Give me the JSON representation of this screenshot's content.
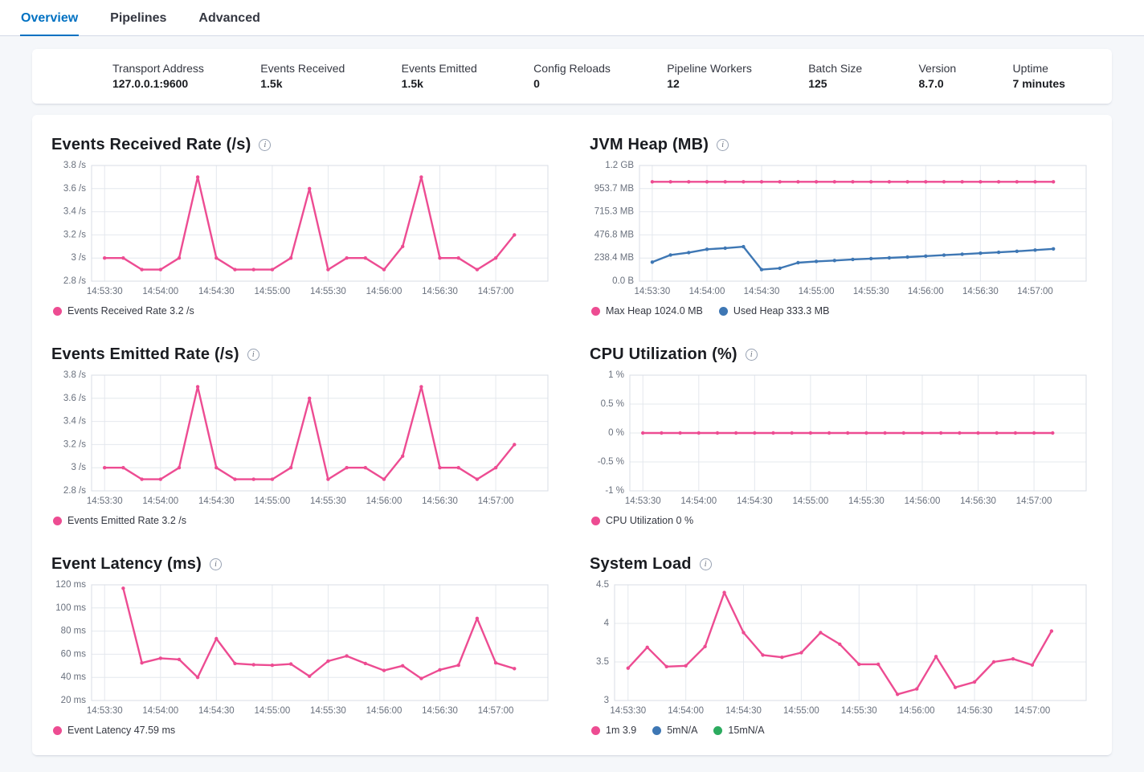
{
  "tabs": [
    {
      "label": "Overview",
      "active": true
    },
    {
      "label": "Pipelines",
      "active": false
    },
    {
      "label": "Advanced",
      "active": false
    }
  ],
  "summary": {
    "items": [
      {
        "label": "Transport Address",
        "value": "127.0.0.1:9600"
      },
      {
        "label": "Events Received",
        "value": "1.5k"
      },
      {
        "label": "Events Emitted",
        "value": "1.5k"
      },
      {
        "label": "Config Reloads",
        "value": "0"
      },
      {
        "label": "Pipeline Workers",
        "value": "12"
      },
      {
        "label": "Batch Size",
        "value": "125"
      },
      {
        "label": "Version",
        "value": "8.7.0"
      },
      {
        "label": "Uptime",
        "value": "7 minutes"
      }
    ]
  },
  "palette": {
    "pink": "#ED4C92",
    "blue": "#3E77B4",
    "green": "#2CAB5F",
    "grid": "#E4E8EE",
    "plot_border": "#D8DDE6",
    "axis_text": "#69707D",
    "accent": "#0071C2"
  },
  "icons": {
    "info": "i"
  },
  "chart_data": [
    {
      "type": "line",
      "title": "Events Received Rate (/s)",
      "x_domain": [
        -7,
        238
      ],
      "x_ticks": [
        {
          "t": 0,
          "label": "14:53:30"
        },
        {
          "t": 30,
          "label": "14:54:00"
        },
        {
          "t": 60,
          "label": "14:54:30"
        },
        {
          "t": 90,
          "label": "14:55:00"
        },
        {
          "t": 120,
          "label": "14:55:30"
        },
        {
          "t": 150,
          "label": "14:56:00"
        },
        {
          "t": 180,
          "label": "14:56:30"
        },
        {
          "t": 210,
          "label": "14:57:00"
        }
      ],
      "y_domain": [
        2.8,
        3.8
      ],
      "y_ticks": [
        {
          "v": 3.8,
          "label": "3.8 /s"
        },
        {
          "v": 3.6,
          "label": "3.6 /s"
        },
        {
          "v": 3.4,
          "label": "3.4 /s"
        },
        {
          "v": 3.2,
          "label": "3.2 /s"
        },
        {
          "v": 3,
          "label": "3 /s"
        },
        {
          "v": 2.8,
          "label": "2.8 /s"
        }
      ],
      "series": [
        {
          "name": "Events Received Rate",
          "color": "pink",
          "x_start_s": 0,
          "x_step_s": 10,
          "values": [
            3,
            3,
            2.9,
            2.9,
            3,
            3.7,
            3,
            2.9,
            2.9,
            2.9,
            3,
            3.6,
            2.9,
            3,
            3,
            2.9,
            3.1,
            3.7,
            3,
            3,
            2.9,
            3,
            3.2
          ]
        }
      ],
      "legend": [
        {
          "label": "Events Received Rate 3.2 /s",
          "color": "pink"
        }
      ]
    },
    {
      "type": "line",
      "title": "JVM Heap (MB)",
      "x_domain": [
        -7,
        238
      ],
      "x_ticks": [
        {
          "t": 0,
          "label": "14:53:30"
        },
        {
          "t": 30,
          "label": "14:54:00"
        },
        {
          "t": 60,
          "label": "14:54:30"
        },
        {
          "t": 90,
          "label": "14:55:00"
        },
        {
          "t": 120,
          "label": "14:55:30"
        },
        {
          "t": 150,
          "label": "14:56:00"
        },
        {
          "t": 180,
          "label": "14:56:30"
        },
        {
          "t": 210,
          "label": "14:57:00"
        }
      ],
      "y_domain": [
        0,
        1192.1
      ],
      "y_ticks": [
        {
          "v": 1192.1,
          "label": "1.2 GB"
        },
        {
          "v": 953.7,
          "label": "953.7 MB"
        },
        {
          "v": 715.3,
          "label": "715.3 MB"
        },
        {
          "v": 476.8,
          "label": "476.8 MB"
        },
        {
          "v": 238.4,
          "label": "238.4 MB"
        },
        {
          "v": 0,
          "label": "0.0 B"
        }
      ],
      "series": [
        {
          "name": "Max Heap",
          "color": "pink",
          "x_start_s": 0,
          "x_step_s": 10,
          "values": [
            1024,
            1024,
            1024,
            1024,
            1024,
            1024,
            1024,
            1024,
            1024,
            1024,
            1024,
            1024,
            1024,
            1024,
            1024,
            1024,
            1024,
            1024,
            1024,
            1024,
            1024,
            1024,
            1024
          ]
        },
        {
          "name": "Used Heap",
          "color": "blue",
          "x_start_s": 0,
          "x_step_s": 10,
          "values": [
            196,
            270,
            295,
            329,
            340,
            355,
            119,
            133,
            190,
            204,
            213,
            224,
            233,
            240,
            248,
            258,
            268,
            278,
            288,
            297,
            308,
            320,
            333
          ]
        }
      ],
      "legend": [
        {
          "label": "Max Heap 1024.0 MB",
          "color": "pink"
        },
        {
          "label": "Used Heap 333.3 MB",
          "color": "blue"
        }
      ]
    },
    {
      "type": "line",
      "title": "Events Emitted Rate (/s)",
      "x_domain": [
        -7,
        238
      ],
      "x_ticks": [
        {
          "t": 0,
          "label": "14:53:30"
        },
        {
          "t": 30,
          "label": "14:54:00"
        },
        {
          "t": 60,
          "label": "14:54:30"
        },
        {
          "t": 90,
          "label": "14:55:00"
        },
        {
          "t": 120,
          "label": "14:55:30"
        },
        {
          "t": 150,
          "label": "14:56:00"
        },
        {
          "t": 180,
          "label": "14:56:30"
        },
        {
          "t": 210,
          "label": "14:57:00"
        }
      ],
      "y_domain": [
        2.8,
        3.8
      ],
      "y_ticks": [
        {
          "v": 3.8,
          "label": "3.8 /s"
        },
        {
          "v": 3.6,
          "label": "3.6 /s"
        },
        {
          "v": 3.4,
          "label": "3.4 /s"
        },
        {
          "v": 3.2,
          "label": "3.2 /s"
        },
        {
          "v": 3,
          "label": "3 /s"
        },
        {
          "v": 2.8,
          "label": "2.8 /s"
        }
      ],
      "series": [
        {
          "name": "Events Emitted Rate",
          "color": "pink",
          "x_start_s": 0,
          "x_step_s": 10,
          "values": [
            3,
            3,
            2.9,
            2.9,
            3,
            3.7,
            3,
            2.9,
            2.9,
            2.9,
            3,
            3.6,
            2.9,
            3,
            3,
            2.9,
            3.1,
            3.7,
            3,
            3,
            2.9,
            3,
            3.2
          ]
        }
      ],
      "legend": [
        {
          "label": "Events Emitted Rate 3.2 /s",
          "color": "pink"
        }
      ]
    },
    {
      "type": "line",
      "title": "CPU Utilization (%)",
      "x_domain": [
        -7,
        238
      ],
      "x_ticks": [
        {
          "t": 0,
          "label": "14:53:30"
        },
        {
          "t": 30,
          "label": "14:54:00"
        },
        {
          "t": 60,
          "label": "14:54:30"
        },
        {
          "t": 90,
          "label": "14:55:00"
        },
        {
          "t": 120,
          "label": "14:55:30"
        },
        {
          "t": 150,
          "label": "14:56:00"
        },
        {
          "t": 180,
          "label": "14:56:30"
        },
        {
          "t": 210,
          "label": "14:57:00"
        }
      ],
      "y_domain": [
        -1,
        1
      ],
      "y_ticks": [
        {
          "v": 1,
          "label": "1 %"
        },
        {
          "v": 0.5,
          "label": "0.5 %"
        },
        {
          "v": 0,
          "label": "0 %"
        },
        {
          "v": -0.5,
          "label": "-0.5 %"
        },
        {
          "v": -1,
          "label": "-1 %"
        }
      ],
      "series": [
        {
          "name": "CPU Utilization",
          "color": "pink",
          "x_start_s": 0,
          "x_step_s": 10,
          "values": [
            0,
            0,
            0,
            0,
            0,
            0,
            0,
            0,
            0,
            0,
            0,
            0,
            0,
            0,
            0,
            0,
            0,
            0,
            0,
            0,
            0,
            0,
            0
          ]
        }
      ],
      "legend": [
        {
          "label": "CPU Utilization 0 %",
          "color": "pink"
        }
      ]
    },
    {
      "type": "line",
      "title": "Event Latency (ms)",
      "x_domain": [
        -7,
        238
      ],
      "x_ticks": [
        {
          "t": 0,
          "label": "14:53:30"
        },
        {
          "t": 30,
          "label": "14:54:00"
        },
        {
          "t": 60,
          "label": "14:54:30"
        },
        {
          "t": 90,
          "label": "14:55:00"
        },
        {
          "t": 120,
          "label": "14:55:30"
        },
        {
          "t": 150,
          "label": "14:56:00"
        },
        {
          "t": 180,
          "label": "14:56:30"
        },
        {
          "t": 210,
          "label": "14:57:00"
        }
      ],
      "y_domain": [
        20,
        120
      ],
      "y_ticks": [
        {
          "v": 120,
          "label": "120 ms"
        },
        {
          "v": 100,
          "label": "100 ms"
        },
        {
          "v": 80,
          "label": "80 ms"
        },
        {
          "v": 60,
          "label": "60 ms"
        },
        {
          "v": 40,
          "label": "40 ms"
        },
        {
          "v": 20,
          "label": "20 ms"
        }
      ],
      "series": [
        {
          "name": "Event Latency",
          "color": "pink",
          "x_start_s": 10,
          "x_step_s": 10,
          "values": [
            117,
            52.5,
            56.5,
            55.5,
            40,
            73.5,
            52,
            51,
            50.5,
            51.5,
            41,
            54,
            58.5,
            52,
            46,
            50,
            39,
            46.5,
            50.5,
            91,
            52.5,
            47.59
          ]
        }
      ],
      "legend": [
        {
          "label": "Event Latency 47.59 ms",
          "color": "pink"
        }
      ]
    },
    {
      "type": "line",
      "title": "System Load",
      "x_domain": [
        -7,
        238
      ],
      "x_ticks": [
        {
          "t": 0,
          "label": "14:53:30"
        },
        {
          "t": 30,
          "label": "14:54:00"
        },
        {
          "t": 60,
          "label": "14:54:30"
        },
        {
          "t": 90,
          "label": "14:55:00"
        },
        {
          "t": 120,
          "label": "14:55:30"
        },
        {
          "t": 150,
          "label": "14:56:00"
        },
        {
          "t": 180,
          "label": "14:56:30"
        },
        {
          "t": 210,
          "label": "14:57:00"
        }
      ],
      "y_domain": [
        3,
        4.5
      ],
      "y_ticks": [
        {
          "v": 4.5,
          "label": "4.5"
        },
        {
          "v": 4,
          "label": "4"
        },
        {
          "v": 3.5,
          "label": "3.5"
        },
        {
          "v": 3,
          "label": "3"
        }
      ],
      "series": [
        {
          "name": "1m",
          "color": "pink",
          "x_start_s": 0,
          "x_step_s": 10,
          "values": [
            3.42,
            3.69,
            3.44,
            3.45,
            3.7,
            4.4,
            3.88,
            3.59,
            3.56,
            3.62,
            3.88,
            3.73,
            3.47,
            3.47,
            3.08,
            3.15,
            3.57,
            3.17,
            3.24,
            3.5,
            3.54,
            3.46,
            3.9
          ]
        }
      ],
      "legend": [
        {
          "label": "1m 3.9",
          "color": "pink"
        },
        {
          "label": "5mN/A",
          "color": "blue"
        },
        {
          "label": "15mN/A",
          "color": "green"
        }
      ]
    }
  ]
}
